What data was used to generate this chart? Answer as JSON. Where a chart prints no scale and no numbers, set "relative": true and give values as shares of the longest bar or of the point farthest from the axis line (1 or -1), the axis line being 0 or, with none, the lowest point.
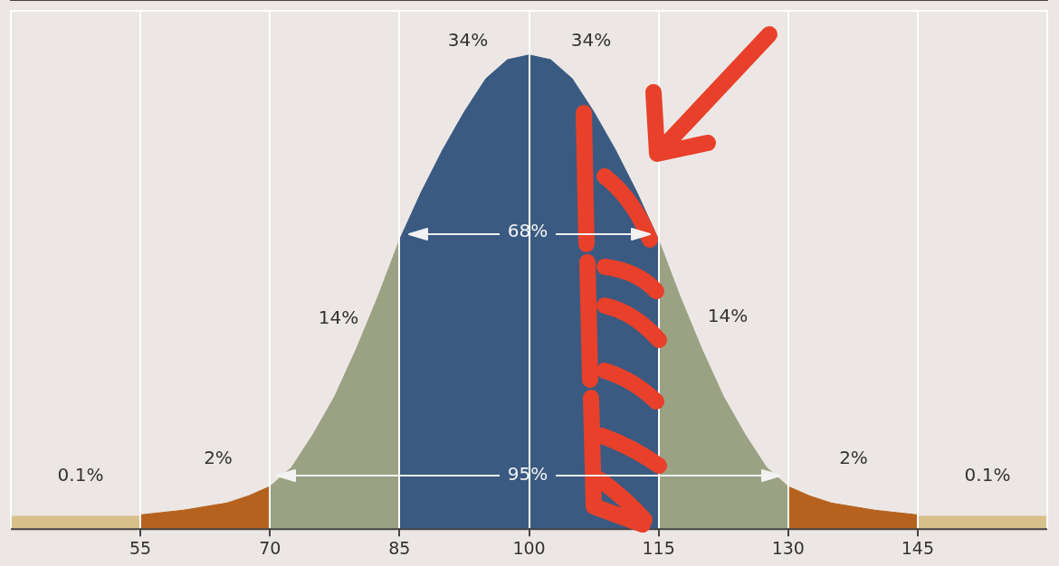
{
  "chart_data": {
    "type": "area",
    "relative": true,
    "xlim": [
      40,
      160
    ],
    "xticks": [
      55,
      70,
      85,
      100,
      115,
      130,
      145
    ],
    "grid": "x",
    "series": [
      {
        "color": "#d8c08a",
        "x": [
          40,
          55
        ],
        "values": [
          0.027,
          0.027
        ]
      },
      {
        "color": "#b5621e",
        "x": [
          55,
          60,
          65,
          67.5,
          70
        ],
        "values": [
          0.03,
          0.04,
          0.055,
          0.07,
          0.09
        ]
      },
      {
        "color": "#9ba283",
        "x": [
          70,
          72.5,
          75,
          77.5,
          80,
          82.5,
          85
        ],
        "values": [
          0.09,
          0.13,
          0.2,
          0.28,
          0.38,
          0.49,
          0.61
        ]
      },
      {
        "color": "#3a5a82",
        "x": [
          85,
          87.5,
          90,
          92.5,
          95,
          97.5,
          100,
          102.5,
          105,
          107.5,
          110,
          112.5,
          115
        ],
        "values": [
          0.61,
          0.71,
          0.8,
          0.88,
          0.95,
          0.99,
          1,
          0.99,
          0.95,
          0.88,
          0.8,
          0.71,
          0.61
        ]
      },
      {
        "color": "#9ba283",
        "x": [
          115,
          117.5,
          120,
          122.5,
          125,
          127.5,
          130
        ],
        "values": [
          0.61,
          0.49,
          0.38,
          0.28,
          0.2,
          0.13,
          0.09
        ]
      },
      {
        "color": "#b5621e",
        "x": [
          130,
          132.5,
          135,
          140,
          145
        ],
        "values": [
          0.09,
          0.07,
          0.055,
          0.04,
          0.03
        ]
      },
      {
        "color": "#d8c08a",
        "x": [
          145,
          160
        ],
        "values": [
          0.027,
          0.027
        ]
      }
    ],
    "annotations": [
      "34%",
      "34%",
      "68%",
      "14%",
      "14%",
      "2%",
      "95%",
      "2%",
      "0.1%",
      "0.1%"
    ]
  }
}
